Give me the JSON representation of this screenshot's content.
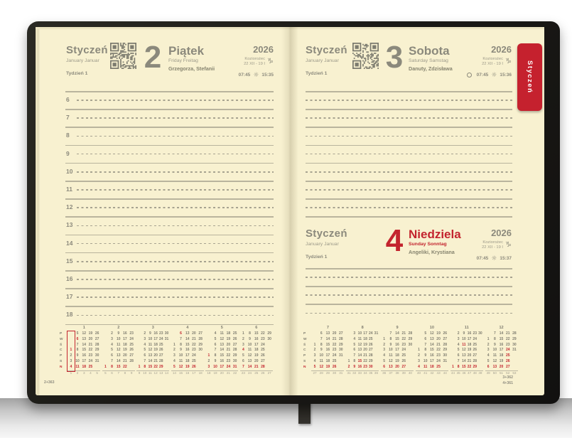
{
  "tab": {
    "label": "Styczeń"
  },
  "common": {
    "month": "Styczeń",
    "month_sub": "January Januar",
    "week_label": "Tydzień 1",
    "year": "2026",
    "zodiac_name": "Koziorożec",
    "zodiac_range": "22 XII - 19 I",
    "zodiac_symbol": "♑",
    "sun_icon": "☼"
  },
  "days": {
    "friday": {
      "number": "2",
      "name": "Piątek",
      "subtitle": "Friday Freitag",
      "name_days": "Grzegorza, Stefanii",
      "sunrise": "07:45",
      "sunset": "15:35",
      "footer": "2+363",
      "hours": [
        "6",
        "7",
        "8",
        "9",
        "10",
        "11",
        "12",
        "13",
        "14",
        "15",
        "16",
        "17",
        "18"
      ]
    },
    "saturday": {
      "number": "3",
      "name": "Sobota",
      "subtitle": "Saturday Samstag",
      "name_days": "Danuty, Zdzisława",
      "sunrise": "07:45",
      "sunset": "15:36",
      "moon_phase": "pełnia"
    },
    "sunday": {
      "number": "4",
      "name": "Niedziela",
      "subtitle": "Sunday Sonntag",
      "name_days": "Angeliki, Krystiana",
      "sunrise": "07:45",
      "sunset": "15:37",
      "footer_top": "3+362",
      "footer_bottom": "4+361"
    }
  },
  "colors": {
    "paper": "#f8f1d0",
    "ink_gray": "#8b897c",
    "accent_red": "#c3242e",
    "cover_black": "#1b1a16"
  },
  "minical": {
    "weekday_letters": [
      "P",
      "W",
      "Ś",
      "C",
      "P",
      "S",
      "N"
    ],
    "left_months": [
      {
        "n": "1",
        "cols": 5,
        "hl": 0,
        "rows": [
          [
            "",
            "5",
            "12",
            "19",
            "26"
          ],
          [
            "",
            "*6",
            "13",
            "20",
            "27"
          ],
          [
            "",
            "7",
            "14",
            "21",
            "28"
          ],
          [
            "*1",
            "8",
            "15",
            "22",
            "29"
          ],
          [
            "2",
            "9",
            "16",
            "23",
            "30"
          ],
          [
            "3",
            "10",
            "17",
            "24",
            "31"
          ],
          [
            "*4",
            "*11",
            "*18",
            "*25",
            ""
          ]
        ],
        "weeks": [
          "1",
          "2",
          "3",
          "4",
          "5"
        ]
      },
      {
        "n": "2",
        "cols": 5,
        "rows": [
          [
            "",
            "2",
            "9",
            "16",
            "23"
          ],
          [
            "",
            "3",
            "10",
            "17",
            "24"
          ],
          [
            "",
            "4",
            "11",
            "18",
            "25"
          ],
          [
            "",
            "5",
            "12",
            "19",
            "26"
          ],
          [
            "",
            "6",
            "13",
            "20",
            "27"
          ],
          [
            "",
            "7",
            "14",
            "21",
            "28"
          ],
          [
            "*1",
            "*8",
            "*15",
            "*22",
            ""
          ]
        ],
        "weeks": [
          "5",
          "6",
          "7",
          "8",
          "9"
        ]
      },
      {
        "n": "3",
        "cols": 6,
        "rows": [
          [
            "",
            "2",
            "9",
            "16",
            "23",
            "30"
          ],
          [
            "",
            "3",
            "10",
            "17",
            "24",
            "31"
          ],
          [
            "",
            "4",
            "11",
            "18",
            "25",
            ""
          ],
          [
            "",
            "5",
            "12",
            "19",
            "26",
            ""
          ],
          [
            "",
            "6",
            "13",
            "20",
            "27",
            ""
          ],
          [
            "",
            "7",
            "14",
            "21",
            "28",
            ""
          ],
          [
            "*1",
            "*8",
            "*15",
            "*22",
            "*29",
            ""
          ]
        ],
        "weeks": [
          "9",
          "10",
          "11",
          "12",
          "13",
          "14"
        ]
      },
      {
        "n": "4",
        "cols": 5,
        "rows": [
          [
            "",
            "*6",
            "13",
            "20",
            "27"
          ],
          [
            "",
            "7",
            "14",
            "21",
            "28"
          ],
          [
            "1",
            "8",
            "15",
            "22",
            "29"
          ],
          [
            "2",
            "9",
            "16",
            "23",
            "30"
          ],
          [
            "3",
            "10",
            "17",
            "24",
            ""
          ],
          [
            "4",
            "11",
            "18",
            "25",
            ""
          ],
          [
            "*5",
            "*12",
            "*19",
            "*26",
            ""
          ]
        ],
        "weeks": [
          "14",
          "15",
          "16",
          "17",
          "18"
        ]
      },
      {
        "n": "5",
        "cols": 5,
        "rows": [
          [
            "",
            "4",
            "11",
            "18",
            "25"
          ],
          [
            "",
            "5",
            "12",
            "19",
            "26"
          ],
          [
            "",
            "6",
            "13",
            "20",
            "27"
          ],
          [
            "",
            "7",
            "14",
            "21",
            "28"
          ],
          [
            "*1",
            "8",
            "15",
            "22",
            "29"
          ],
          [
            "2",
            "9",
            "16",
            "23",
            "30"
          ],
          [
            "*3",
            "*10",
            "*17",
            "*24",
            "*31"
          ]
        ],
        "weeks": [
          "18",
          "19",
          "20",
          "21",
          "22"
        ]
      },
      {
        "n": "6",
        "cols": 5,
        "rows": [
          [
            "1",
            "8",
            "15",
            "22",
            "29"
          ],
          [
            "2",
            "9",
            "16",
            "23",
            "30"
          ],
          [
            "3",
            "10",
            "17",
            "24",
            ""
          ],
          [
            "*4",
            "11",
            "18",
            "25",
            ""
          ],
          [
            "5",
            "12",
            "19",
            "26",
            ""
          ],
          [
            "6",
            "13",
            "20",
            "27",
            ""
          ],
          [
            "*7",
            "*14",
            "*21",
            "*28",
            ""
          ]
        ],
        "weeks": [
          "23",
          "24",
          "25",
          "26",
          "27"
        ]
      }
    ],
    "right_months": [
      {
        "n": "7",
        "cols": 5,
        "rows": [
          [
            "",
            "6",
            "13",
            "20",
            "27"
          ],
          [
            "",
            "7",
            "14",
            "21",
            "28"
          ],
          [
            "1",
            "8",
            "15",
            "22",
            "29"
          ],
          [
            "2",
            "9",
            "16",
            "23",
            "30"
          ],
          [
            "3",
            "10",
            "17",
            "24",
            "31"
          ],
          [
            "4",
            "11",
            "18",
            "25",
            ""
          ],
          [
            "*5",
            "*12",
            "*19",
            "*26",
            ""
          ]
        ],
        "weeks": [
          "27",
          "28",
          "29",
          "30",
          "31"
        ]
      },
      {
        "n": "8",
        "cols": 6,
        "rows": [
          [
            "",
            "3",
            "10",
            "17",
            "24",
            "31"
          ],
          [
            "",
            "4",
            "11",
            "18",
            "25",
            ""
          ],
          [
            "",
            "5",
            "12",
            "19",
            "26",
            ""
          ],
          [
            "",
            "6",
            "13",
            "20",
            "27",
            ""
          ],
          [
            "",
            "7",
            "14",
            "21",
            "28",
            ""
          ],
          [
            "1",
            "8",
            "*15",
            "22",
            "29",
            ""
          ],
          [
            "*2",
            "*9",
            "*16",
            "*23",
            "*30",
            ""
          ]
        ],
        "weeks": [
          "31",
          "32",
          "33",
          "34",
          "35",
          "36"
        ]
      },
      {
        "n": "9",
        "cols": 5,
        "rows": [
          [
            "",
            "7",
            "14",
            "21",
            "28"
          ],
          [
            "1",
            "8",
            "15",
            "22",
            "29"
          ],
          [
            "2",
            "9",
            "16",
            "23",
            "30"
          ],
          [
            "3",
            "10",
            "17",
            "24",
            ""
          ],
          [
            "4",
            "11",
            "18",
            "25",
            ""
          ],
          [
            "5",
            "12",
            "19",
            "26",
            ""
          ],
          [
            "*6",
            "*13",
            "*20",
            "*27",
            ""
          ]
        ],
        "weeks": [
          "36",
          "37",
          "38",
          "39",
          "40"
        ]
      },
      {
        "n": "10",
        "cols": 5,
        "rows": [
          [
            "",
            "5",
            "12",
            "19",
            "26"
          ],
          [
            "",
            "6",
            "13",
            "20",
            "27"
          ],
          [
            "",
            "7",
            "14",
            "21",
            "28"
          ],
          [
            "1",
            "8",
            "15",
            "22",
            "29"
          ],
          [
            "2",
            "9",
            "16",
            "23",
            "30"
          ],
          [
            "3",
            "10",
            "17",
            "24",
            "31"
          ],
          [
            "*4",
            "*11",
            "*18",
            "*25",
            ""
          ]
        ],
        "weeks": [
          "40",
          "41",
          "42",
          "43",
          "44"
        ]
      },
      {
        "n": "11",
        "cols": 6,
        "rows": [
          [
            "",
            "2",
            "9",
            "16",
            "23",
            "30"
          ],
          [
            "",
            "3",
            "10",
            "17",
            "24",
            ""
          ],
          [
            "",
            "4",
            "*11",
            "18",
            "25",
            ""
          ],
          [
            "",
            "5",
            "12",
            "19",
            "26",
            ""
          ],
          [
            "",
            "6",
            "13",
            "20",
            "27",
            ""
          ],
          [
            "",
            "7",
            "14",
            "21",
            "28",
            ""
          ],
          [
            "*1",
            "*8",
            "*15",
            "*22",
            "*29",
            ""
          ]
        ],
        "weeks": [
          "44",
          "45",
          "46",
          "47",
          "48",
          "49"
        ]
      },
      {
        "n": "12",
        "cols": 5,
        "rows": [
          [
            "",
            "7",
            "14",
            "21",
            "28"
          ],
          [
            "1",
            "8",
            "15",
            "22",
            "29"
          ],
          [
            "2",
            "9",
            "16",
            "23",
            "30"
          ],
          [
            "3",
            "10",
            "17",
            "*24",
            "31"
          ],
          [
            "4",
            "11",
            "18",
            "*25",
            ""
          ],
          [
            "5",
            "12",
            "19",
            "*26",
            ""
          ],
          [
            "*6",
            "*13",
            "*20",
            "*27",
            ""
          ]
        ],
        "weeks": [
          "49",
          "50",
          "51",
          "52",
          "53"
        ]
      }
    ]
  }
}
